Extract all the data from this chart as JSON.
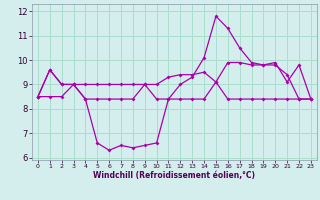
{
  "xlabel": "Windchill (Refroidissement éolien,°C)",
  "background_color": "#d4eeee",
  "grid_color": "#aaddcc",
  "line_color": "#aa00aa",
  "x": [
    0,
    1,
    2,
    3,
    4,
    5,
    6,
    7,
    8,
    9,
    10,
    11,
    12,
    13,
    14,
    15,
    16,
    17,
    18,
    19,
    20,
    21,
    22,
    23
  ],
  "series0": [
    8.5,
    9.6,
    9.0,
    9.0,
    8.4,
    6.6,
    6.3,
    6.5,
    6.4,
    6.5,
    6.6,
    8.4,
    9.0,
    9.3,
    10.1,
    11.8,
    11.3,
    10.5,
    9.9,
    9.8,
    9.8,
    9.4,
    8.4,
    8.4
  ],
  "series1": [
    8.5,
    9.6,
    9.0,
    9.0,
    8.4,
    8.4,
    8.4,
    8.4,
    8.4,
    9.0,
    8.4,
    8.4,
    8.4,
    8.4,
    8.4,
    9.1,
    8.4,
    8.4,
    8.4,
    8.4,
    8.4,
    8.4,
    8.4,
    8.4
  ],
  "series2": [
    8.5,
    8.5,
    8.5,
    9.0,
    9.0,
    9.0,
    9.0,
    9.0,
    9.0,
    9.0,
    9.0,
    9.3,
    9.4,
    9.4,
    9.5,
    9.1,
    9.9,
    9.9,
    9.8,
    9.8,
    9.9,
    9.1,
    9.8,
    8.4
  ],
  "ylim": [
    5.9,
    12.3
  ],
  "xlim": [
    -0.5,
    23.5
  ],
  "yticks": [
    6,
    7,
    8,
    9,
    10,
    11,
    12
  ],
  "xticks": [
    0,
    1,
    2,
    3,
    4,
    5,
    6,
    7,
    8,
    9,
    10,
    11,
    12,
    13,
    14,
    15,
    16,
    17,
    18,
    19,
    20,
    21,
    22,
    23
  ]
}
